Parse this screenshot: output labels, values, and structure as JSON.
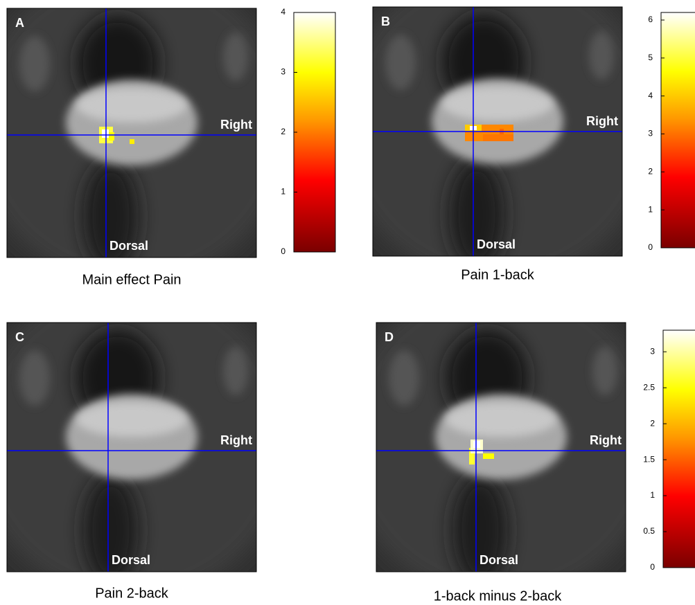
{
  "panels": [
    {
      "letter": "A",
      "title": "Main effect Pain",
      "right_label": "Right",
      "dorsal_label": "Dorsal",
      "colorbar": {
        "lim": [
          0,
          4
        ],
        "ticks": [
          0,
          1,
          2,
          3,
          4
        ]
      }
    },
    {
      "letter": "B",
      "title": "Pain 1-back",
      "right_label": "Right",
      "dorsal_label": "Dorsal",
      "colorbar": {
        "lim": [
          0,
          6.2
        ],
        "ticks": [
          0,
          1,
          2,
          3,
          4,
          5,
          6
        ]
      }
    },
    {
      "letter": "C",
      "title": "Pain 2-back",
      "right_label": "Right",
      "dorsal_label": "Dorsal"
    },
    {
      "letter": "D",
      "title": "1-back minus 2-back",
      "right_label": "Right",
      "dorsal_label": "Dorsal",
      "colorbar": {
        "lim": [
          0,
          3.3
        ],
        "ticks": [
          0,
          0.5,
          1,
          1.5,
          2,
          2.5,
          3
        ]
      }
    }
  ]
}
